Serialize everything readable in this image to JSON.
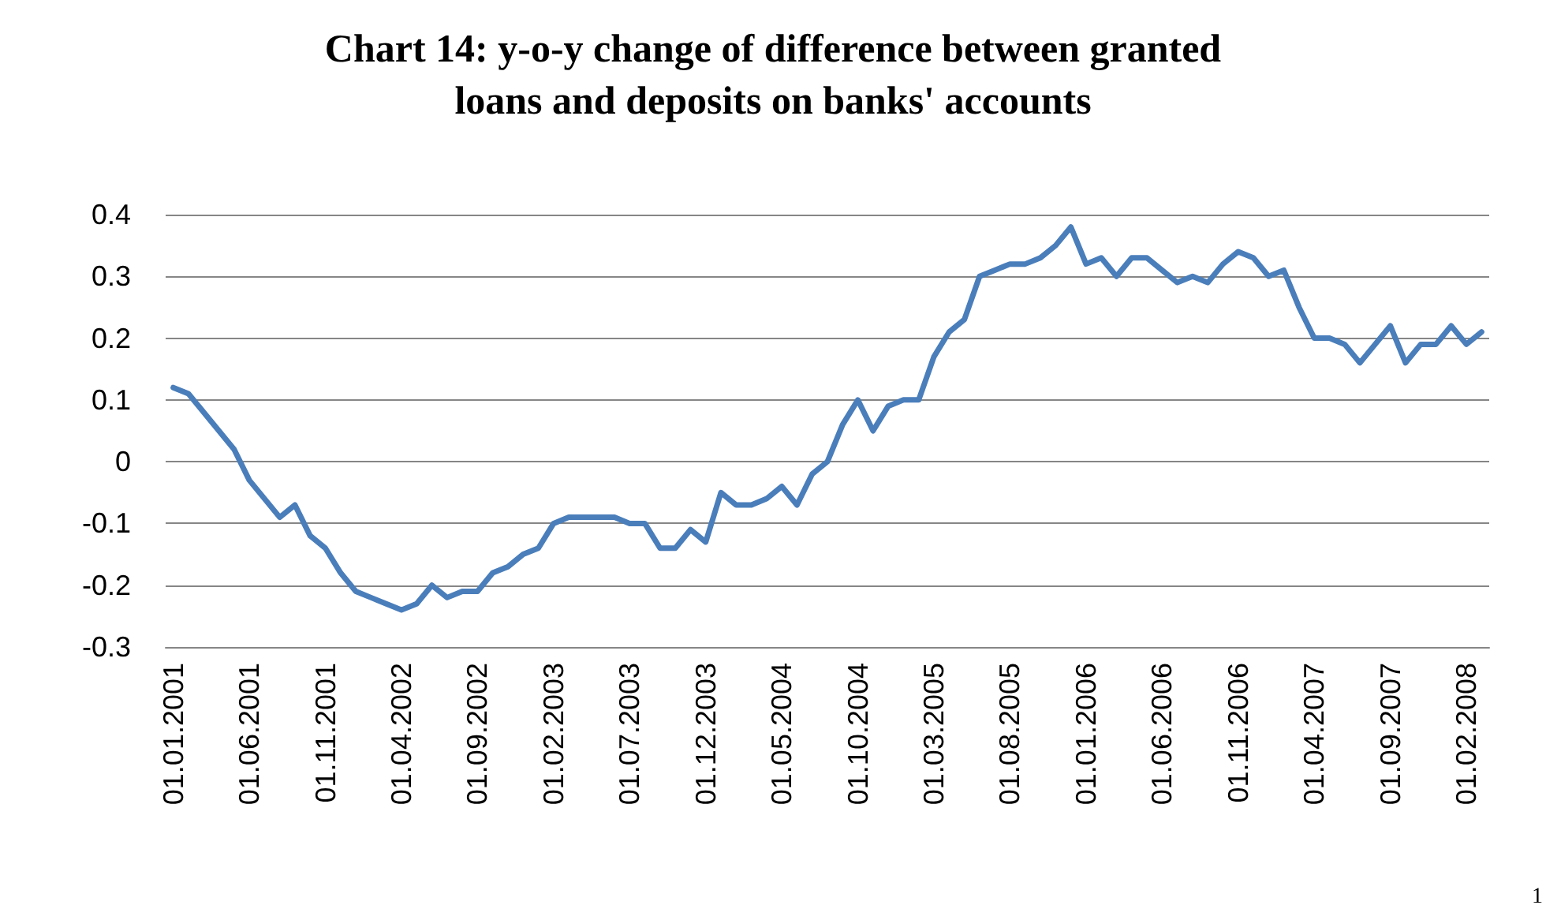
{
  "chart_data": {
    "type": "line",
    "title": "Chart 14: y-o-y change of difference between granted\nloans and deposits on banks' accounts",
    "categories": [
      "01.01.2001",
      null,
      null,
      null,
      null,
      "01.06.2001",
      null,
      null,
      null,
      null,
      "01.11.2001",
      null,
      null,
      null,
      null,
      "01.04.2002",
      null,
      null,
      null,
      null,
      "01.09.2002",
      null,
      null,
      null,
      null,
      "01.02.2003",
      null,
      null,
      null,
      null,
      "01.07.2003",
      null,
      null,
      null,
      null,
      "01.12.2003",
      null,
      null,
      null,
      null,
      "01.05.2004",
      null,
      null,
      null,
      null,
      "01.10.2004",
      null,
      null,
      null,
      null,
      "01.03.2005",
      null,
      null,
      null,
      null,
      "01.08.2005",
      null,
      null,
      null,
      null,
      "01.01.2006",
      null,
      null,
      null,
      null,
      "01.06.2006",
      null,
      null,
      null,
      null,
      "01.11.2006",
      null,
      null,
      null,
      null,
      "01.04.2007",
      null,
      null,
      null,
      null,
      "01.09.2007",
      null,
      null,
      null,
      null,
      "01.02.2008",
      null
    ],
    "series": [
      {
        "color": "#4a7ebb",
        "values": [
          0.12,
          0.11,
          0.08,
          0.05,
          0.02,
          -0.03,
          -0.06,
          -0.09,
          -0.07,
          -0.12,
          -0.14,
          -0.18,
          -0.21,
          -0.22,
          -0.23,
          -0.24,
          -0.23,
          -0.2,
          -0.22,
          -0.21,
          -0.21,
          -0.18,
          -0.17,
          -0.15,
          -0.14,
          -0.1,
          -0.09,
          -0.09,
          -0.09,
          -0.09,
          -0.1,
          -0.1,
          -0.14,
          -0.14,
          -0.11,
          -0.13,
          -0.05,
          -0.07,
          -0.07,
          -0.06,
          -0.04,
          -0.07,
          -0.02,
          0.0,
          0.06,
          0.1,
          0.05,
          0.09,
          0.1,
          0.1,
          0.17,
          0.21,
          0.23,
          0.3,
          0.31,
          0.32,
          0.32,
          0.33,
          0.35,
          0.38,
          0.32,
          0.33,
          0.3,
          0.33,
          0.33,
          0.31,
          0.29,
          0.3,
          0.29,
          0.32,
          0.34,
          0.33,
          0.3,
          0.31,
          0.25,
          0.2,
          0.2,
          0.19,
          0.16,
          0.19,
          0.22,
          0.16,
          0.19,
          0.19,
          0.22,
          0.19,
          0.21
        ]
      }
    ],
    "ylim": [
      -0.3,
      0.4
    ],
    "yticks": [
      -0.3,
      -0.2,
      -0.1,
      0,
      0.1,
      0.2,
      0.3,
      0.4
    ],
    "grid": "y",
    "marker": "none",
    "line_style": "solid",
    "annotations": [
      "1"
    ]
  }
}
